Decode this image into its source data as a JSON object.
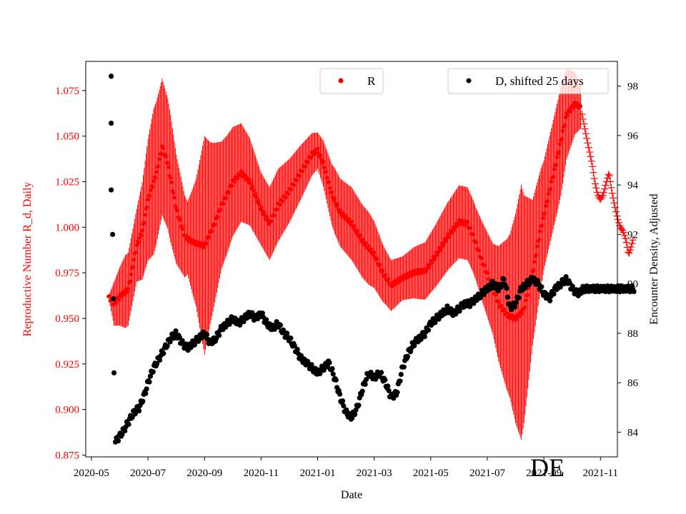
{
  "chart_data": {
    "type": "scatter",
    "xlabel": "Date",
    "ylabel_left": "Reproductive Number R_d, Daily",
    "ylabel_right": "Encounter Density, Adjusted",
    "country_label": "DE",
    "x_ticks": [
      "2020-05",
      "2020-07",
      "2020-09",
      "2020-11",
      "2021-01",
      "2021-03",
      "2021-05",
      "2021-07",
      "2021-09",
      "2021-11"
    ],
    "x_range_months": [
      -0.2,
      18.6
    ],
    "ylim_left": [
      0.874,
      1.091
    ],
    "yticks_left": [
      "0.875",
      "0.900",
      "0.925",
      "0.950",
      "0.975",
      "1.000",
      "1.025",
      "1.050",
      "1.075"
    ],
    "ylim_right": [
      83.0,
      99.0
    ],
    "yticks_right": [
      "84",
      "86",
      "88",
      "90",
      "92",
      "94",
      "96",
      "98"
    ],
    "legend": {
      "r_label": "R",
      "d_label": "D, shifted 25 days"
    },
    "colors": {
      "r": "#ff0000",
      "d": "#000000",
      "axis": "#000000"
    },
    "R": {
      "anchors_month_value": [
        [
          0.6,
          0.962
        ],
        [
          0.8,
          0.958
        ],
        [
          1.0,
          0.962
        ],
        [
          1.3,
          0.966
        ],
        [
          1.6,
          0.99
        ],
        [
          1.8,
          0.998
        ],
        [
          2.0,
          1.015
        ],
        [
          2.3,
          1.03
        ],
        [
          2.5,
          1.044
        ],
        [
          2.7,
          1.035
        ],
        [
          3.0,
          1.01
        ],
        [
          3.3,
          0.995
        ],
        [
          3.6,
          0.992
        ],
        [
          4.0,
          0.99
        ],
        [
          4.3,
          1.0
        ],
        [
          4.6,
          1.012
        ],
        [
          4.8,
          1.018
        ],
        [
          5.0,
          1.025
        ],
        [
          5.3,
          1.03
        ],
        [
          5.6,
          1.025
        ],
        [
          6.0,
          1.01
        ],
        [
          6.3,
          1.002
        ],
        [
          6.6,
          1.012
        ],
        [
          7.0,
          1.02
        ],
        [
          7.4,
          1.03
        ],
        [
          7.8,
          1.04
        ],
        [
          8.0,
          1.042
        ],
        [
          8.2,
          1.035
        ],
        [
          8.5,
          1.018
        ],
        [
          8.8,
          1.008
        ],
        [
          9.2,
          1.002
        ],
        [
          9.6,
          0.992
        ],
        [
          10.0,
          0.985
        ],
        [
          10.3,
          0.975
        ],
        [
          10.6,
          0.968
        ],
        [
          11.0,
          0.972
        ],
        [
          11.4,
          0.975
        ],
        [
          11.8,
          0.976
        ],
        [
          12.2,
          0.985
        ],
        [
          12.6,
          0.995
        ],
        [
          13.0,
          1.003
        ],
        [
          13.3,
          1.002
        ],
        [
          13.5,
          0.995
        ],
        [
          13.8,
          0.982
        ],
        [
          14.1,
          0.97
        ],
        [
          14.4,
          0.958
        ],
        [
          14.7,
          0.952
        ],
        [
          15.0,
          0.95
        ],
        [
          15.3,
          0.955
        ],
        [
          15.6,
          0.975
        ],
        [
          15.9,
          1.0
        ],
        [
          16.2,
          1.02
        ],
        [
          16.5,
          1.04
        ],
        [
          16.8,
          1.062
        ],
        [
          17.1,
          1.068
        ],
        [
          17.3,
          1.066
        ]
      ],
      "amp_month_value": [
        [
          0.6,
          0.0
        ],
        [
          0.8,
          0.012
        ],
        [
          1.2,
          0.02
        ],
        [
          1.6,
          0.02
        ],
        [
          2.2,
          0.04
        ],
        [
          2.8,
          0.035
        ],
        [
          3.4,
          0.02
        ],
        [
          3.7,
          0.035
        ],
        [
          4.0,
          0.06
        ],
        [
          4.2,
          0.05
        ],
        [
          4.6,
          0.035
        ],
        [
          5.0,
          0.03
        ],
        [
          5.5,
          0.025
        ],
        [
          6.0,
          0.02
        ],
        [
          6.6,
          0.02
        ],
        [
          7.4,
          0.015
        ],
        [
          8.0,
          0.01
        ],
        [
          8.6,
          0.018
        ],
        [
          9.2,
          0.02
        ],
        [
          9.8,
          0.02
        ],
        [
          10.4,
          0.015
        ],
        [
          11.0,
          0.012
        ],
        [
          11.6,
          0.015
        ],
        [
          12.4,
          0.018
        ],
        [
          13.0,
          0.02
        ],
        [
          13.6,
          0.02
        ],
        [
          14.2,
          0.025
        ],
        [
          14.8,
          0.045
        ],
        [
          15.2,
          0.07
        ],
        [
          15.6,
          0.04
        ],
        [
          16.0,
          0.03
        ],
        [
          16.6,
          0.03
        ],
        [
          17.3,
          0.012
        ]
      ],
      "uncertain_start_month": 17.35,
      "uncertain_month_value": [
        [
          17.35,
          1.062
        ],
        [
          17.5,
          1.05
        ],
        [
          17.7,
          1.035
        ],
        [
          17.8,
          1.025
        ],
        [
          17.9,
          1.018
        ],
        [
          18.0,
          1.015
        ],
        [
          18.1,
          1.018
        ],
        [
          18.3,
          1.03
        ],
        [
          18.4,
          1.02
        ],
        [
          18.5,
          1.012
        ],
        [
          18.6,
          1.005
        ],
        [
          18.7,
          1.0
        ],
        [
          18.8,
          0.998
        ],
        [
          18.9,
          0.993
        ],
        [
          19.0,
          0.985
        ],
        [
          19.1,
          0.99
        ],
        [
          19.15,
          0.993
        ]
      ]
    },
    "D": {
      "outliers_month_value": [
        [
          0.7,
          98.4
        ],
        [
          0.7,
          96.5
        ],
        [
          0.7,
          93.8
        ],
        [
          0.75,
          92.0
        ],
        [
          0.78,
          89.4
        ],
        [
          0.8,
          86.4
        ]
      ],
      "anchors_month_value": [
        [
          0.85,
          83.6
        ],
        [
          1.1,
          84.0
        ],
        [
          1.3,
          84.4
        ],
        [
          1.5,
          84.8
        ],
        [
          1.7,
          85.0
        ],
        [
          1.9,
          85.6
        ],
        [
          2.0,
          86.0
        ],
        [
          2.2,
          86.6
        ],
        [
          2.4,
          87.0
        ],
        [
          2.6,
          87.4
        ],
        [
          2.8,
          87.8
        ],
        [
          3.0,
          88.0
        ],
        [
          3.2,
          87.6
        ],
        [
          3.4,
          87.4
        ],
        [
          3.6,
          87.6
        ],
        [
          3.8,
          87.8
        ],
        [
          4.0,
          88.0
        ],
        [
          4.2,
          87.6
        ],
        [
          4.4,
          87.8
        ],
        [
          4.6,
          88.2
        ],
        [
          4.8,
          88.4
        ],
        [
          5.0,
          88.6
        ],
        [
          5.2,
          88.4
        ],
        [
          5.4,
          88.6
        ],
        [
          5.6,
          88.8
        ],
        [
          5.8,
          88.6
        ],
        [
          6.0,
          88.8
        ],
        [
          6.2,
          88.4
        ],
        [
          6.4,
          88.2
        ],
        [
          6.6,
          88.4
        ],
        [
          6.8,
          88.0
        ],
        [
          7.0,
          87.8
        ],
        [
          7.2,
          87.4
        ],
        [
          7.4,
          87.0
        ],
        [
          7.6,
          86.8
        ],
        [
          7.8,
          86.6
        ],
        [
          8.0,
          86.4
        ],
        [
          8.2,
          86.6
        ],
        [
          8.4,
          86.8
        ],
        [
          8.6,
          86.2
        ],
        [
          8.8,
          85.4
        ],
        [
          9.0,
          84.8
        ],
        [
          9.2,
          84.6
        ],
        [
          9.4,
          85.0
        ],
        [
          9.6,
          85.8
        ],
        [
          9.8,
          86.4
        ],
        [
          10.0,
          86.2
        ],
        [
          10.2,
          86.4
        ],
        [
          10.4,
          86.0
        ],
        [
          10.6,
          85.4
        ],
        [
          10.8,
          85.6
        ],
        [
          11.0,
          86.6
        ],
        [
          11.2,
          87.2
        ],
        [
          11.4,
          87.6
        ],
        [
          11.6,
          87.8
        ],
        [
          11.8,
          88.0
        ],
        [
          12.0,
          88.4
        ],
        [
          12.2,
          88.6
        ],
        [
          12.4,
          88.8
        ],
        [
          12.6,
          89.0
        ],
        [
          12.8,
          88.8
        ],
        [
          13.0,
          89.0
        ],
        [
          13.2,
          89.2
        ],
        [
          13.4,
          89.2
        ],
        [
          13.6,
          89.4
        ],
        [
          13.8,
          89.6
        ],
        [
          14.0,
          89.8
        ],
        [
          14.2,
          90.0
        ],
        [
          14.4,
          89.8
        ],
        [
          14.6,
          90.2
        ],
        [
          14.8,
          89.0
        ],
        [
          15.0,
          89.2
        ],
        [
          15.2,
          89.8
        ],
        [
          15.4,
          90.0
        ],
        [
          15.6,
          90.2
        ],
        [
          15.8,
          90.0
        ],
        [
          16.0,
          89.6
        ],
        [
          16.2,
          89.4
        ],
        [
          16.4,
          89.8
        ],
        [
          16.6,
          90.0
        ],
        [
          16.8,
          90.2
        ],
        [
          17.0,
          89.8
        ],
        [
          17.2,
          89.6
        ],
        [
          17.4,
          89.8
        ],
        [
          17.6,
          89.8
        ],
        [
          17.8,
          89.8
        ],
        [
          18.0,
          89.8
        ],
        [
          18.2,
          89.8
        ],
        [
          18.4,
          89.8
        ],
        [
          18.6,
          89.8
        ],
        [
          18.8,
          89.8
        ],
        [
          19.0,
          89.8
        ],
        [
          19.2,
          89.8
        ]
      ]
    }
  }
}
